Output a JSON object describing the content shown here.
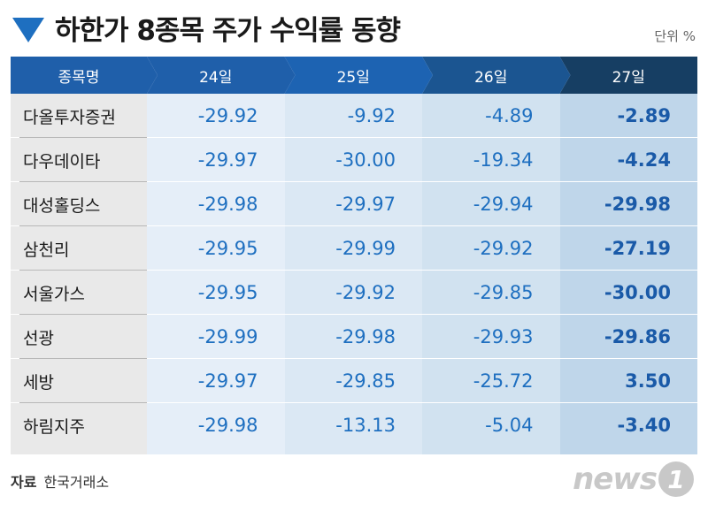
{
  "title": "하한가 8종목 주가 수익률 동향",
  "unit_label": "단위 %",
  "source_label": "자료",
  "source_value": "한국거래소",
  "logo": {
    "text": "news",
    "badge": "1"
  },
  "colors": {
    "accent": "#1e6fc0",
    "header": [
      "#1f5faa",
      "#1d63b2",
      "#1b5591",
      "#163e63"
    ],
    "columns": [
      "#e5eef8",
      "#dbe8f4",
      "#d1e2f0",
      "#bfd6ea"
    ]
  },
  "chart_data": {
    "type": "table",
    "title": "하한가 8종목 주가 수익률 동향",
    "unit": "%",
    "header": "종목명",
    "columns": [
      "24일",
      "25일",
      "26일",
      "27일"
    ],
    "rows": [
      {
        "name": "다올투자증권",
        "values": [
          "-29.92",
          "-9.92",
          "-4.89",
          "-2.89"
        ]
      },
      {
        "name": "다우데이타",
        "values": [
          "-29.97",
          "-30.00",
          "-19.34",
          "-4.24"
        ]
      },
      {
        "name": "대성홀딩스",
        "values": [
          "-29.98",
          "-29.97",
          "-29.94",
          "-29.98"
        ]
      },
      {
        "name": "삼천리",
        "values": [
          "-29.95",
          "-29.99",
          "-29.92",
          "-27.19"
        ]
      },
      {
        "name": "서울가스",
        "values": [
          "-29.95",
          "-29.92",
          "-29.85",
          "-30.00"
        ]
      },
      {
        "name": "선광",
        "values": [
          "-29.99",
          "-29.98",
          "-29.93",
          "-29.86"
        ]
      },
      {
        "name": "세방",
        "values": [
          "-29.97",
          "-29.85",
          "-25.72",
          "3.50"
        ]
      },
      {
        "name": "하림지주",
        "values": [
          "-29.98",
          "-13.13",
          "-5.04",
          "-3.40"
        ]
      }
    ]
  }
}
